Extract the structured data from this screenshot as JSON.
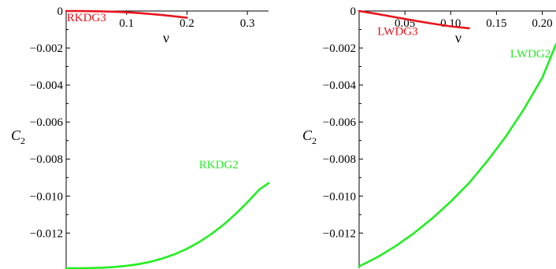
{
  "chart_data": [
    {
      "type": "line",
      "xlabel": "ν",
      "ylabel": "C",
      "ylabel_subscript": "2",
      "xlim": [
        0,
        0.335
      ],
      "ylim": [
        -0.0139,
        0
      ],
      "xticks": [
        {
          "v": 0.1,
          "label": "0.1"
        },
        {
          "v": 0.2,
          "label": "0.2"
        },
        {
          "v": 0.3,
          "label": "0.3"
        }
      ],
      "yticks": [
        {
          "v": 0,
          "label": "0"
        },
        {
          "v": -0.002,
          "label": "−0.002"
        },
        {
          "v": -0.004,
          "label": "−0.004"
        },
        {
          "v": -0.006,
          "label": "−0.006"
        },
        {
          "v": -0.008,
          "label": "−0.008"
        },
        {
          "v": -0.01,
          "label": "−0.010"
        },
        {
          "v": -0.012,
          "label": "−0.012"
        }
      ],
      "series": [
        {
          "name": "RKDG3",
          "color": "#e8141c",
          "x": [
            0,
            0.02,
            0.04,
            0.06,
            0.08,
            0.1,
            0.12,
            0.14,
            0.16,
            0.18,
            0.2
          ],
          "y": [
            0,
            0,
            -1e-05,
            -2e-05,
            -4e-05,
            -7e-05,
            -0.00011,
            -0.00016,
            -0.00022,
            -0.00029,
            -0.00036
          ],
          "label_at": [
            0.001,
            -0.00055
          ]
        },
        {
          "name": "RKDG2",
          "color": "#22ee22",
          "x": [
            0,
            0.02,
            0.04,
            0.06,
            0.08,
            0.1,
            0.12,
            0.14,
            0.16,
            0.18,
            0.2,
            0.22,
            0.24,
            0.26,
            0.28,
            0.3,
            0.32,
            0.335
          ],
          "y": [
            -0.0139,
            -0.0139,
            -0.01389,
            -0.01387,
            -0.01383,
            -0.01377,
            -0.01368,
            -0.01355,
            -0.01337,
            -0.01314,
            -0.01285,
            -0.01249,
            -0.01206,
            -0.01156,
            -0.01098,
            -0.01034,
            -0.00964,
            -0.0093
          ],
          "label_at": [
            0.22,
            -0.0085
          ]
        }
      ]
    },
    {
      "type": "line",
      "xlabel": "ν",
      "ylabel": "C",
      "ylabel_subscript": "2",
      "xlim": [
        0,
        0.215
      ],
      "ylim": [
        -0.0139,
        0
      ],
      "xticks": [
        {
          "v": 0.05,
          "label": "0.05"
        },
        {
          "v": 0.1,
          "label": "0.10"
        },
        {
          "v": 0.15,
          "label": "0.15"
        },
        {
          "v": 0.2,
          "label": "0.20"
        }
      ],
      "yticks": [
        {
          "v": 0,
          "label": "0"
        },
        {
          "v": -0.002,
          "label": "−0.002"
        },
        {
          "v": -0.004,
          "label": "−0.004"
        },
        {
          "v": -0.006,
          "label": "−0.006"
        },
        {
          "v": -0.008,
          "label": "−0.008"
        },
        {
          "v": -0.01,
          "label": "−0.010"
        },
        {
          "v": -0.012,
          "label": "−0.012"
        }
      ],
      "series": [
        {
          "name": "LWDG3",
          "color": "#e8141c",
          "x": [
            0,
            0.02,
            0.04,
            0.06,
            0.08,
            0.1,
            0.12
          ],
          "y": [
            0,
            -0.00016,
            -0.00034,
            -0.00052,
            -0.00068,
            -0.00083,
            -0.00093
          ],
          "label_at": [
            0.02,
            -0.0013
          ]
        },
        {
          "name": "LWDG2",
          "color": "#22ee22",
          "x": [
            0,
            0.02,
            0.04,
            0.06,
            0.08,
            0.1,
            0.12,
            0.14,
            0.16,
            0.18,
            0.2,
            0.215
          ],
          "y": [
            -0.0138,
            -0.0133,
            -0.0127,
            -0.012,
            -0.0112,
            -0.0103,
            -0.0093,
            -0.0081,
            -0.0068,
            -0.0053,
            -0.0036,
            -0.0018
          ],
          "label_at": [
            0.165,
            -0.0025
          ]
        }
      ]
    }
  ]
}
